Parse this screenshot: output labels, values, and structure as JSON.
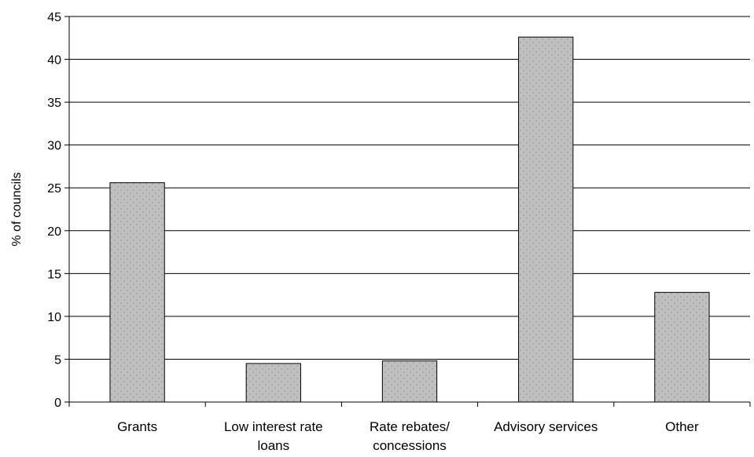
{
  "chart_data": {
    "type": "bar",
    "title": "",
    "xlabel": "",
    "ylabel": "% of councils",
    "ylim": [
      0,
      45
    ],
    "ytick_step": 5,
    "grid": true,
    "categories": [
      [
        "Grants"
      ],
      [
        "Low interest rate",
        "loans"
      ],
      [
        "Rate rebates/",
        "concessions"
      ],
      [
        "Advisory services"
      ],
      [
        "Other"
      ]
    ],
    "values": [
      25.6,
      4.5,
      4.8,
      42.6,
      12.8
    ],
    "bar_color": "#c0c0c0",
    "bar_dot_color": "#8a8a8a",
    "bar_edge_color": "#000000",
    "grid_color": "#000000"
  }
}
